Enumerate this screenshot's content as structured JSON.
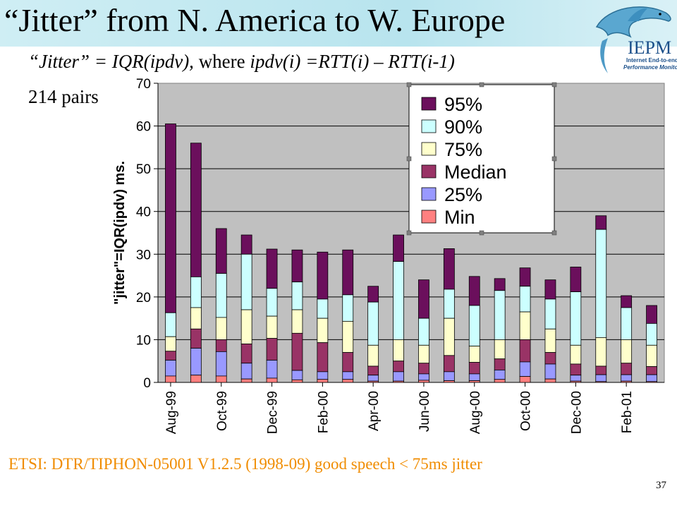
{
  "header": {
    "title": "“Jitter” from N. America to W. Europe",
    "subtitle_lead": "“Jitter” = IQR(ipdv), ",
    "subtitle_mid": "where ",
    "subtitle_formula": "ipdv(i) =RTT(i) – RTT(i-1)",
    "pairs": "214 pairs"
  },
  "logo": {
    "text": "IEPM",
    "tagline1": "Internet End-to-end",
    "tagline2": "Performance Monitoring",
    "icon": "dolphin-icon"
  },
  "footer": {
    "note": "ETSI: DTR/TIPHON-05001 V1.2.5 (1998-09) good speech < 75ms jitter",
    "page_number": "37"
  },
  "colors": {
    "p95": "#6b0f5c",
    "p90": "#ccffff",
    "p75": "#ffffcc",
    "median": "#993366",
    "p25": "#9999ff",
    "min": "#ff8080",
    "plot_bg": "#c0c0c0",
    "note": "#f08c00"
  },
  "chart_data": {
    "type": "bar",
    "stacked": "overlapping percentile bars",
    "ylabel": "\"jitter\"=IQR(ipdv) ms.",
    "ylim": [
      0,
      70
    ],
    "yticks": [
      "0",
      "10",
      "20",
      "30",
      "40",
      "50",
      "60",
      "70"
    ],
    "grid": true,
    "legend_position": "top-right",
    "x_tick_labels": [
      "Aug-99",
      "Oct-99",
      "Dec-99",
      "Feb-00",
      "Apr-00",
      "Jun-00",
      "Aug-00",
      "Oct-00",
      "Dec-00",
      "Feb-01"
    ],
    "series": [
      {
        "name": "95%",
        "values": [
          60.5,
          56,
          36,
          34.5,
          31.2,
          31,
          30.5,
          31,
          22.5,
          34.5,
          24,
          31.3,
          24.8,
          24.3,
          26.8,
          24,
          27,
          39,
          20.3,
          18
        ]
      },
      {
        "name": "90%",
        "values": [
          16.3,
          24.7,
          25.5,
          30,
          22,
          23.5,
          19.5,
          20.5,
          18.8,
          28.3,
          15,
          21.8,
          18,
          21.5,
          22.5,
          19.5,
          21.2,
          35.8,
          17.5,
          13.8
        ]
      },
      {
        "name": "75%",
        "values": [
          10.7,
          17.5,
          15.2,
          17,
          15.5,
          17,
          15,
          14.3,
          8.7,
          10,
          8.7,
          15,
          8.5,
          10,
          16.5,
          12.5,
          8.7,
          10.5,
          10,
          8.7
        ]
      },
      {
        "name": "Median",
        "values": [
          7.3,
          12.5,
          10,
          9,
          10.3,
          11.5,
          9.3,
          7,
          3.8,
          5,
          4.5,
          6.3,
          4.7,
          5.5,
          10,
          7,
          4.3,
          3.8,
          4.5,
          3.7
        ]
      },
      {
        "name": "25%",
        "values": [
          5.2,
          8,
          7.2,
          4.5,
          5.2,
          2.8,
          2.5,
          2.5,
          1.7,
          2.5,
          2,
          2.5,
          2,
          2.9,
          4.8,
          4.3,
          1.7,
          1.8,
          1.8,
          1.8
        ]
      },
      {
        "name": "Min",
        "values": [
          1.5,
          1.7,
          1.5,
          0.8,
          1,
          0.6,
          0.7,
          0.7,
          0.3,
          0.3,
          0.5,
          0.4,
          0.4,
          0.7,
          1.4,
          0.8,
          0.3,
          0.2,
          0.3,
          0.2
        ]
      }
    ]
  }
}
